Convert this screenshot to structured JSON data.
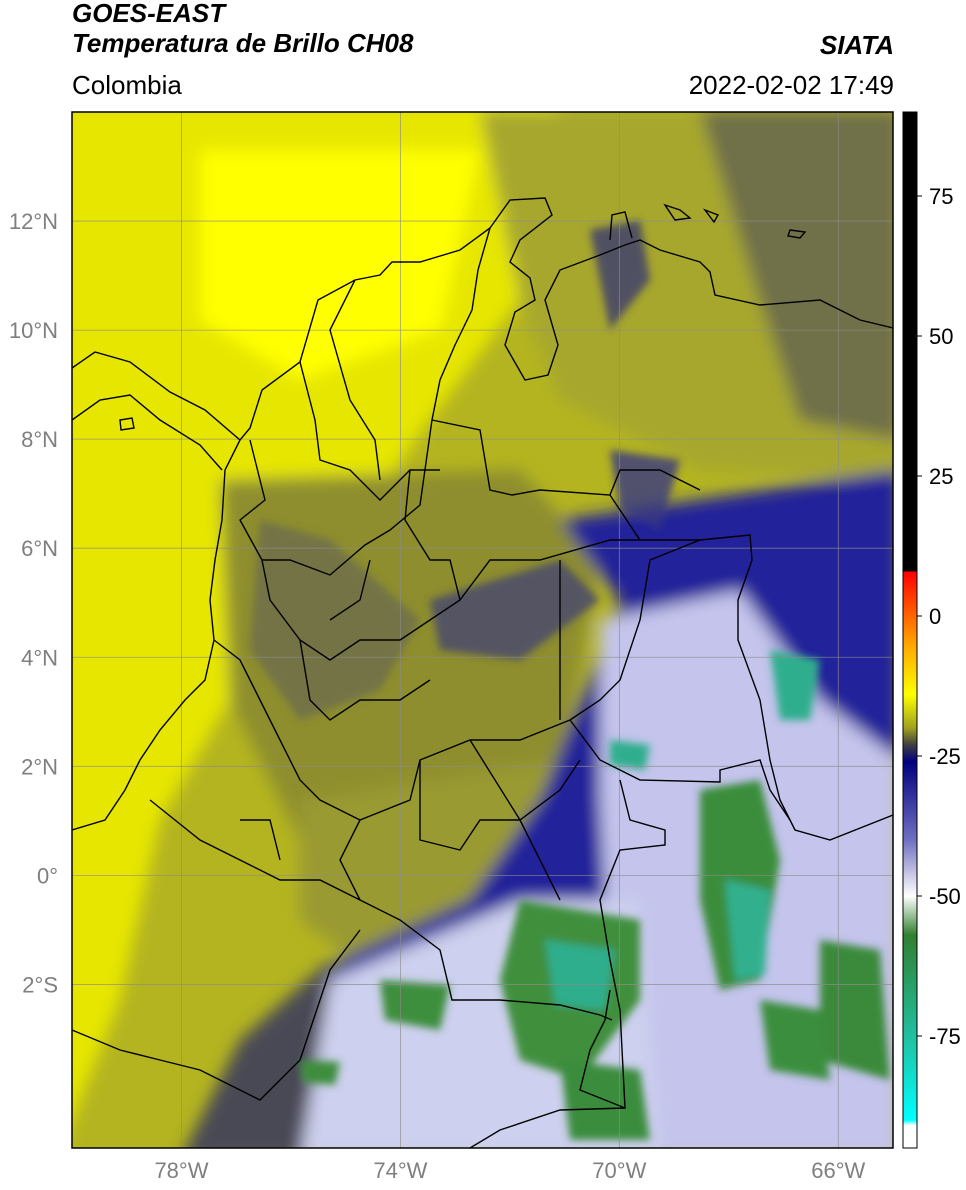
{
  "header": {
    "satellite": "GOES-EAST",
    "product": "Temperatura de Brillo CH08",
    "region": "Colombia",
    "organization": "SIATA",
    "datetime": "2022-02-02 17:49"
  },
  "map": {
    "lon_range": [
      -80.0,
      -65.0
    ],
    "lat_range": [
      -5.0,
      14.0
    ],
    "grid": true,
    "lon_ticks": [
      -78,
      -74,
      -70,
      -66
    ],
    "lon_tick_labels": [
      "78°W",
      "74°W",
      "70°W",
      "66°W"
    ],
    "lat_ticks": [
      12,
      10,
      8,
      6,
      4,
      2,
      0,
      -2
    ],
    "lat_tick_labels": [
      "12°N",
      "10°N",
      "8°N",
      "6°N",
      "4°N",
      "2°N",
      "0°",
      "2°S"
    ]
  },
  "colorbar": {
    "range": [
      -95,
      90
    ],
    "tick_values": [
      75,
      50,
      25,
      0,
      -25,
      -50,
      -75
    ],
    "tick_labels": [
      "75",
      "50",
      "25",
      "0",
      "-25",
      "-50",
      "-75"
    ],
    "stops": [
      {
        "value": 90,
        "color": "#000000"
      },
      {
        "value": 8,
        "color": "#000000"
      },
      {
        "value": 7.9,
        "color": "#ff0000"
      },
      {
        "value": -5,
        "color": "#ffa500"
      },
      {
        "value": -14,
        "color": "#ffff00"
      },
      {
        "value": -20,
        "color": "#a0a020"
      },
      {
        "value": -23,
        "color": "#404040"
      },
      {
        "value": -26,
        "color": "#000080"
      },
      {
        "value": -40,
        "color": "#7070c0"
      },
      {
        "value": -50,
        "color": "#ffffff"
      },
      {
        "value": -57,
        "color": "#308030"
      },
      {
        "value": -75,
        "color": "#20c0a0"
      },
      {
        "value": -90,
        "color": "#00ffff"
      },
      {
        "value": -91,
        "color": "#ffffff"
      },
      {
        "value": -95,
        "color": "#ffffff"
      }
    ]
  },
  "field_colors": {
    "warm_yellow": "#f0f000",
    "olive": "#9a9a28",
    "dark_olive": "#5c5c3a",
    "deep_blue": "#1a1a80",
    "pale_cloud": "#d8d8f0",
    "cold_green": "#3a8c3a",
    "teal": "#2fb08a"
  }
}
